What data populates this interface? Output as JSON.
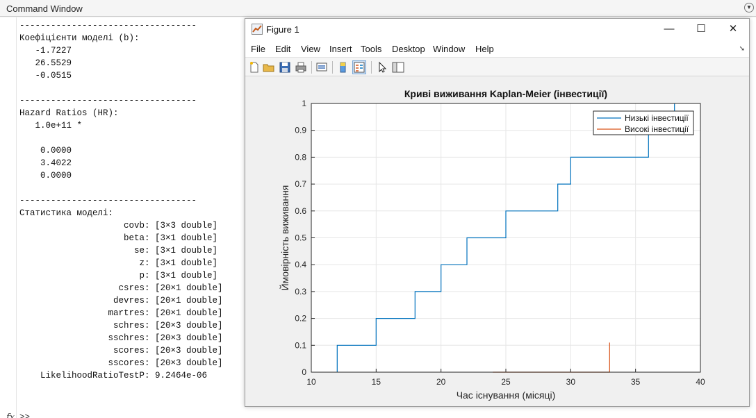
{
  "command_window": {
    "title": "Command Window",
    "lines": [
      "----------------------------------",
      "Коефіцієнти моделі (b):",
      "   -1.7227",
      "   26.5529",
      "   -0.0515",
      "",
      "----------------------------------",
      "Hazard Ratios (HR):",
      "   1.0e+11 *",
      "",
      "    0.0000",
      "    3.4022",
      "    0.0000",
      "",
      "----------------------------------",
      "Статистика моделі:",
      "                    covb: [3×3 double]",
      "                    beta: [3×1 double]",
      "                      se: [3×1 double]",
      "                       z: [3×1 double]",
      "                       p: [3×1 double]",
      "                   csres: [20×1 double]",
      "                  devres: [20×1 double]",
      "                 martres: [20×1 double]",
      "                  schres: [20×3 double]",
      "                 sschres: [20×3 double]",
      "                  scores: [20×3 double]",
      "                 sscores: [20×3 double]",
      "    LikelihoodRatioTestP: 9.2464e-06"
    ],
    "prompt": ">>",
    "fx_icon": "fx-icon"
  },
  "figure": {
    "title": "Figure 1",
    "menus": [
      "File",
      "Edit",
      "View",
      "Insert",
      "Tools",
      "Desktop",
      "Window",
      "Help"
    ],
    "toolbar_icons": [
      "new-figure-icon",
      "open-file-icon",
      "save-icon",
      "print-icon",
      "link-plot-icon",
      "colorbar-icon",
      "legend-icon",
      "edit-plot-icon",
      "property-inspector-icon"
    ],
    "window_buttons": {
      "minimize": "—",
      "maximize": "☐",
      "close": "✕"
    },
    "dock_icon": "dock-arrow-icon"
  },
  "chart_data": {
    "type": "line",
    "title": "Криві виживання Kaplan-Meier (інвестиції)",
    "xlabel": "Час існування (місяці)",
    "ylabel": "Ймовірність виживання",
    "xlim": [
      10,
      40
    ],
    "ylim": [
      0,
      1
    ],
    "xticks": [
      "10",
      "15",
      "20",
      "25",
      "30",
      "35",
      "40"
    ],
    "yticks": [
      "0",
      "0.1",
      "0.2",
      "0.3",
      "0.4",
      "0.5",
      "0.6",
      "0.7",
      "0.8",
      "0.9",
      "1"
    ],
    "grid": true,
    "legend_position": "top-right",
    "series": [
      {
        "name": "Низькі інвестиції",
        "color": "#0072BD",
        "step": true,
        "x": [
          12,
          12,
          15,
          15,
          18,
          18,
          20,
          20,
          22,
          22,
          25,
          25,
          29,
          29,
          30,
          30,
          36,
          36,
          38,
          38
        ],
        "y": [
          0,
          0.1,
          0.1,
          0.2,
          0.2,
          0.3,
          0.3,
          0.4,
          0.4,
          0.5,
          0.5,
          0.6,
          0.6,
          0.7,
          0.7,
          0.8,
          0.8,
          0.9,
          0.9,
          1.0
        ]
      },
      {
        "name": "Високі інвестиції",
        "color": "#D95319",
        "step": true,
        "x": [
          24,
          33,
          33
        ],
        "y": [
          0,
          0,
          0.11
        ]
      }
    ]
  }
}
